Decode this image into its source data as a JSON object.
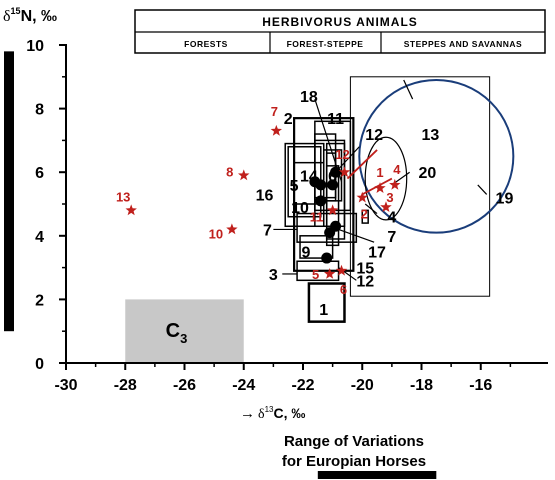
{
  "chart_data": {
    "type": "scatter",
    "xlim": [
      -30,
      -14
    ],
    "ylim": [
      0,
      10.5
    ],
    "x_ticks": [
      -30,
      -28,
      -26,
      -24,
      -22,
      -20,
      -18,
      -16
    ],
    "y_ticks": [
      0,
      2,
      4,
      6,
      8,
      10
    ],
    "x_tick_labels": [
      "-30",
      "-28",
      "-26",
      "-24",
      "-22",
      "-20",
      "-18",
      "-16"
    ],
    "y_tick_labels": [
      "0",
      "2",
      "4",
      "6",
      "8",
      "10"
    ],
    "xlabel": {
      "arrow": "→",
      "delta": "δ",
      "sup": "13",
      "rest": "C, ‰"
    },
    "ylabel": {
      "delta": "δ",
      "sup": "15",
      "rest": "N, ‰"
    },
    "legend_table": {
      "title": "HERBIVORUS ANIMALS",
      "columns": [
        "FORESTS",
        "FOREST-STEPPE",
        "STEPPES AND SAVANNAS"
      ]
    },
    "c3_region": {
      "x": [
        -28,
        -24
      ],
      "y": [
        0,
        2
      ],
      "label": "C",
      "sub": "3"
    },
    "range_note": {
      "line1": "Range of Variations",
      "line2": "for Europian Horses",
      "x_range": [
        -21.5,
        -17.5
      ]
    },
    "n_range_bar": {
      "y_range": [
        1,
        9.8
      ]
    },
    "rectangles": [
      {
        "label": "1",
        "x": [
          -21.8,
          -20.6
        ],
        "y": [
          1.3,
          2.5
        ],
        "width": 2.5
      },
      {
        "label": "2",
        "x": [
          -22.3,
          -20.3
        ],
        "y": [
          2.9,
          7.7
        ],
        "width": 2.2
      },
      {
        "label": "3",
        "x": [
          -22.2,
          -20.8
        ],
        "y": [
          2.6,
          3.2
        ],
        "width": 1.5
      },
      {
        "label": "5",
        "x": [
          -22.6,
          -21.3
        ],
        "y": [
          4.3,
          6.9
        ],
        "width": 1.5
      },
      {
        "label": "6",
        "x": [
          -21.3,
          -20.7
        ],
        "y": [
          5.1,
          6.7
        ],
        "width": 1.5
      },
      {
        "label": "7",
        "x": [
          -22.2,
          -20.2
        ],
        "y": [
          3.8,
          4.7
        ],
        "width": 1.5
      },
      {
        "label": "9",
        "x": [
          -22.1,
          -21.0
        ],
        "y": [
          3.3,
          4.0
        ],
        "width": 1.5
      },
      {
        "label": "10",
        "x": [
          -22.5,
          -21.4
        ],
        "y": [
          4.6,
          6.8
        ],
        "width": 1.5
      },
      {
        "label": "11",
        "x": [
          -21.6,
          -20.4
        ],
        "y": [
          4.8,
          7.6
        ],
        "width": 1.5
      },
      {
        "label": "12",
        "x": [
          -21.2,
          -20.9
        ],
        "y": [
          5.1,
          6.6
        ],
        "width": 1.5
      },
      {
        "label": "13",
        "x": [
          -20.4,
          -15.7
        ],
        "y": [
          2.1,
          9.0
        ],
        "width": 1.0
      },
      {
        "label": "14",
        "x": [
          -21.6,
          -20.6
        ],
        "y": [
          4.3,
          7.0
        ],
        "width": 1.5
      },
      {
        "label": "15",
        "x": [
          -21.2,
          -20.6
        ],
        "y": [
          3.9,
          6.9
        ],
        "width": 1.5
      },
      {
        "label": "16",
        "x": [
          -22.3,
          -21.3
        ],
        "y": [
          5.0,
          6.3
        ],
        "width": 1.5
      },
      {
        "label": "17",
        "x": [
          -21.2,
          -20.8
        ],
        "y": [
          3.7,
          6.2
        ],
        "width": 1.5
      },
      {
        "label": "18",
        "x": [
          -21.6,
          -20.9
        ],
        "y": [
          5.2,
          7.2
        ],
        "width": 1.5
      },
      {
        "label": "",
        "x": [
          -20.0,
          -19.8
        ],
        "y": [
          4.4,
          4.8
        ],
        "width": 1.5
      }
    ],
    "ellipses": [
      {
        "label": "19",
        "cx": -17.5,
        "cy": 6.5,
        "rx": 2.6,
        "ry": 2.4
      },
      {
        "label": "20",
        "cx": -19.2,
        "cy": 5.8,
        "rx": 0.7,
        "ry": 1.3
      }
    ],
    "dots": [
      {
        "x": -21.6,
        "y": 5.7
      },
      {
        "x": -21.4,
        "y": 5.6
      },
      {
        "x": -21.4,
        "y": 5.1
      },
      {
        "x": -20.9,
        "y": 6.0
      },
      {
        "x": -21.0,
        "y": 5.6
      },
      {
        "x": -20.9,
        "y": 4.3
      },
      {
        "x": -21.1,
        "y": 4.1
      },
      {
        "x": -21.2,
        "y": 3.3
      }
    ],
    "stars": [
      {
        "label": "1",
        "x": -19.4,
        "y": 5.5
      },
      {
        "label": "2",
        "x": -20.0,
        "y": 5.2
      },
      {
        "label": "3",
        "x": -19.2,
        "y": 4.9
      },
      {
        "label": "4",
        "x": -18.9,
        "y": 5.6
      },
      {
        "label": "5",
        "x": -21.1,
        "y": 2.8
      },
      {
        "label": "6",
        "x": -20.7,
        "y": 2.9
      },
      {
        "label": "7",
        "x": -22.9,
        "y": 7.3
      },
      {
        "label": "8",
        "x": -24.0,
        "y": 5.9
      },
      {
        "label": "10",
        "x": -24.4,
        "y": 4.2
      },
      {
        "label": "11",
        "x": -21.0,
        "y": 4.8
      },
      {
        "label": "12",
        "x": -20.6,
        "y": 6.0
      },
      {
        "label": "13",
        "x": -27.8,
        "y": 4.8
      }
    ],
    "black_labels": [
      {
        "text": "2",
        "x": -22.5,
        "y": 7.7
      },
      {
        "text": "18",
        "x": -21.8,
        "y": 8.4
      },
      {
        "text": "11",
        "x": -20.9,
        "y": 7.7
      },
      {
        "text": "12",
        "x": -19.6,
        "y": 7.2
      },
      {
        "text": "13",
        "x": -17.7,
        "y": 7.2
      },
      {
        "text": "20",
        "x": -17.8,
        "y": 6.0
      },
      {
        "text": "19",
        "x": -15.2,
        "y": 5.2
      },
      {
        "text": "14",
        "x": -21.8,
        "y": 5.9
      },
      {
        "text": "6",
        "x": -21.0,
        "y": 5.9
      },
      {
        "text": "5",
        "x": -22.3,
        "y": 5.6
      },
      {
        "text": "16",
        "x": -23.3,
        "y": 5.3
      },
      {
        "text": "10",
        "x": -22.1,
        "y": 4.9
      },
      {
        "text": "7",
        "x": -23.2,
        "y": 4.2
      },
      {
        "text": "4",
        "x": -19.0,
        "y": 4.6
      },
      {
        "text": "7",
        "x": -19.0,
        "y": 4.0
      },
      {
        "text": "17",
        "x": -19.5,
        "y": 3.5
      },
      {
        "text": "9",
        "x": -21.9,
        "y": 3.5
      },
      {
        "text": "15",
        "x": -19.9,
        "y": 3.0
      },
      {
        "text": "3",
        "x": -23.0,
        "y": 2.8
      },
      {
        "text": "12",
        "x": -19.9,
        "y": 2.6
      },
      {
        "text": "1",
        "x": -21.3,
        "y": 1.7
      }
    ],
    "connector_lines": [
      {
        "from": [
          -21.6,
          8.3
        ],
        "to": [
          -20.7,
          5.7
        ]
      },
      {
        "from": [
          -20.1,
          6.8
        ],
        "to": [
          -20.8,
          6.1
        ]
      },
      {
        "from": [
          -18.6,
          8.9
        ],
        "to": [
          -18.3,
          8.3
        ]
      },
      {
        "from": [
          -18.4,
          6.0
        ],
        "to": [
          -19.0,
          5.6
        ]
      },
      {
        "from": [
          -15.8,
          5.3
        ],
        "to": [
          -16.1,
          5.6
        ]
      },
      {
        "from": [
          -19.5,
          4.7
        ],
        "to": [
          -19.9,
          5.0
        ]
      },
      {
        "from": [
          -19.6,
          3.8
        ],
        "to": [
          -20.8,
          4.2
        ]
      },
      {
        "from": [
          -20.2,
          2.6
        ],
        "to": [
          -20.8,
          3.0
        ]
      },
      {
        "from": [
          -23.0,
          4.2
        ],
        "to": [
          -22.2,
          4.2
        ]
      },
      {
        "from": [
          -22.7,
          2.8
        ],
        "to": [
          -22.2,
          2.8
        ]
      }
    ],
    "red_connector_lines": [
      {
        "from": [
          -19.5,
          6.7
        ],
        "to": [
          -20.5,
          5.8
        ]
      },
      {
        "from": [
          -19.0,
          5.8
        ],
        "to": [
          -20.0,
          5.3
        ]
      }
    ],
    "colors": {
      "axis": "#000000",
      "rect": "#000000",
      "ellipse19": "#1a3d7a",
      "star": "#c0201c",
      "c3_fill": "#c8c8c8",
      "range_bar": "#000000"
    }
  }
}
